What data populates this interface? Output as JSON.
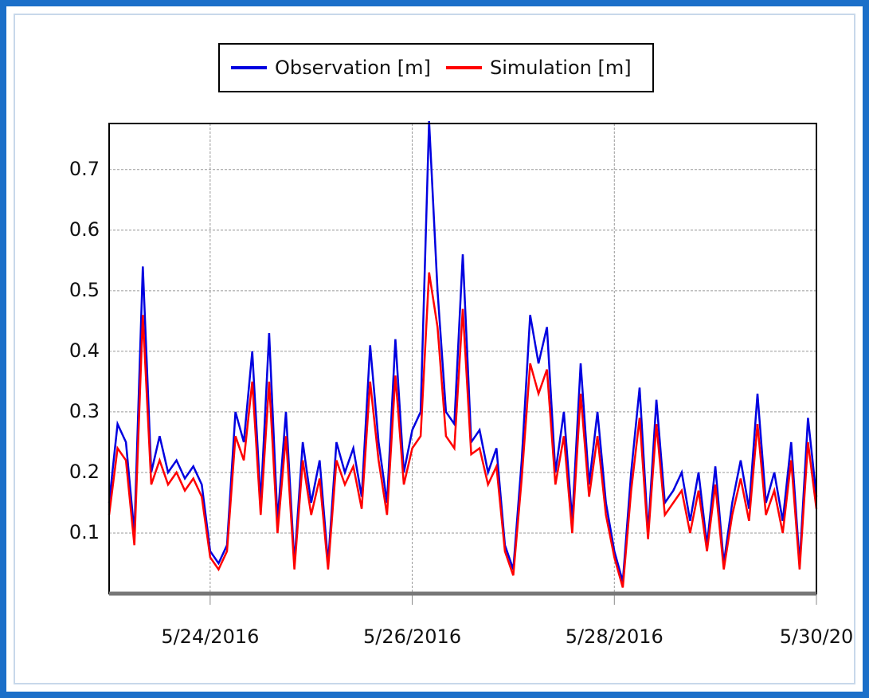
{
  "chart_data": {
    "type": "line",
    "xlim": [
      "2016-05-23",
      "2016-05-30"
    ],
    "xticks": [
      {
        "value": "2016-05-24",
        "label": "5/24/2016"
      },
      {
        "value": "2016-05-26",
        "label": "5/26/2016"
      },
      {
        "value": "2016-05-28",
        "label": "5/28/2016"
      },
      {
        "value": "2016-05-30",
        "label": "5/30/20"
      }
    ],
    "ylim": [
      0,
      0.776
    ],
    "yticks": [
      0.1,
      0.2,
      0.3,
      0.4,
      0.5,
      0.6,
      0.7
    ],
    "grid": true,
    "legend": "top",
    "series": [
      {
        "name": "Observation [m]",
        "color": "#0000e0",
        "values": [
          0.15,
          0.28,
          0.25,
          0.1,
          0.54,
          0.2,
          0.26,
          0.2,
          0.22,
          0.19,
          0.21,
          0.18,
          0.07,
          0.05,
          0.08,
          0.3,
          0.25,
          0.4,
          0.15,
          0.43,
          0.12,
          0.3,
          0.05,
          0.25,
          0.15,
          0.22,
          0.05,
          0.25,
          0.2,
          0.24,
          0.16,
          0.41,
          0.25,
          0.15,
          0.42,
          0.2,
          0.27,
          0.3,
          0.78,
          0.5,
          0.3,
          0.28,
          0.56,
          0.25,
          0.27,
          0.2,
          0.24,
          0.08,
          0.04,
          0.22,
          0.46,
          0.38,
          0.44,
          0.2,
          0.3,
          0.12,
          0.38,
          0.18,
          0.3,
          0.15,
          0.07,
          0.02,
          0.2,
          0.34,
          0.1,
          0.32,
          0.15,
          0.17,
          0.2,
          0.12,
          0.2,
          0.08,
          0.21,
          0.05,
          0.15,
          0.22,
          0.14,
          0.33,
          0.15,
          0.2,
          0.12,
          0.25,
          0.05,
          0.29,
          0.16
        ]
      },
      {
        "name": "Simulation [m]",
        "color": "#ff0000",
        "values": [
          0.13,
          0.24,
          0.22,
          0.08,
          0.46,
          0.18,
          0.22,
          0.18,
          0.2,
          0.17,
          0.19,
          0.16,
          0.06,
          0.04,
          0.07,
          0.26,
          0.22,
          0.35,
          0.13,
          0.35,
          0.1,
          0.26,
          0.04,
          0.22,
          0.13,
          0.19,
          0.04,
          0.22,
          0.18,
          0.21,
          0.14,
          0.35,
          0.22,
          0.13,
          0.36,
          0.18,
          0.24,
          0.26,
          0.53,
          0.44,
          0.26,
          0.24,
          0.47,
          0.23,
          0.24,
          0.18,
          0.21,
          0.07,
          0.03,
          0.19,
          0.38,
          0.33,
          0.37,
          0.18,
          0.26,
          0.1,
          0.33,
          0.16,
          0.26,
          0.13,
          0.06,
          0.01,
          0.17,
          0.29,
          0.09,
          0.28,
          0.13,
          0.15,
          0.17,
          0.1,
          0.17,
          0.07,
          0.18,
          0.04,
          0.13,
          0.19,
          0.12,
          0.28,
          0.13,
          0.17,
          0.1,
          0.22,
          0.04,
          0.25,
          0.14
        ]
      }
    ]
  }
}
